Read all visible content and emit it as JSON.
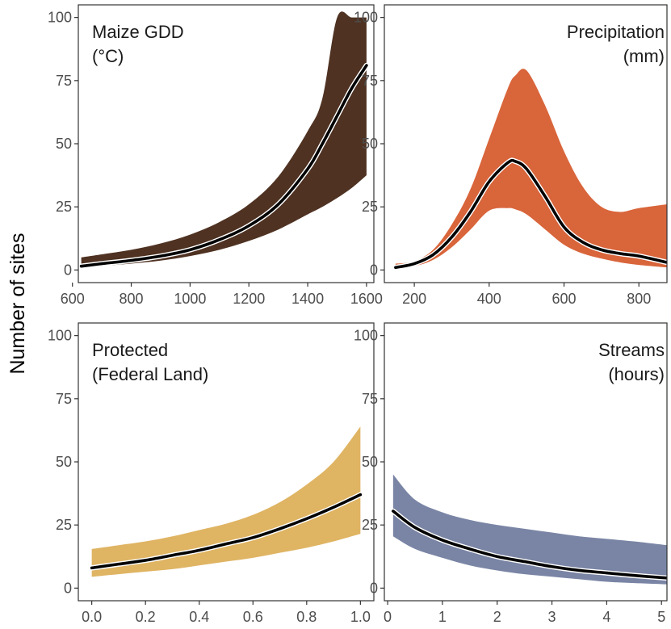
{
  "figure": {
    "ylabel": "Number of sites"
  },
  "chart_data": [
    {
      "type": "line",
      "title_lines": [
        "Maize GDD",
        "(°C)"
      ],
      "title_align": "top-left",
      "color": "#4f3222",
      "xlim": [
        620,
        1625
      ],
      "ylim": [
        -5,
        105
      ],
      "xticks": [
        600,
        800,
        1000,
        1200,
        1400,
        1600
      ],
      "yticks": [
        0,
        25,
        50,
        75,
        100
      ],
      "x": [
        630,
        700,
        800,
        900,
        1000,
        1100,
        1200,
        1300,
        1400,
        1450,
        1500,
        1550,
        1600
      ],
      "y": [
        1.5,
        2.5,
        3.8,
        5.5,
        8,
        12,
        17.5,
        26,
        40,
        50,
        61,
        72,
        81
      ],
      "lower": [
        1,
        1.6,
        2.5,
        3.7,
        5.5,
        8,
        11.5,
        16,
        22,
        25,
        28.5,
        32.5,
        37.5
      ],
      "upper": [
        5,
        6.2,
        8,
        10.5,
        14,
        19,
        26,
        37,
        55,
        68,
        100,
        100,
        100
      ]
    },
    {
      "type": "line",
      "title_lines": [
        "Precipitation",
        "(mm)"
      ],
      "title_align": "top-right",
      "color": "#d9653b",
      "xlim": [
        120,
        875
      ],
      "ylim": [
        -5,
        105
      ],
      "xticks": [
        200,
        400,
        600,
        800
      ],
      "yticks": [
        0,
        25,
        50,
        75,
        100
      ],
      "x": [
        150,
        200,
        250,
        300,
        350,
        400,
        450,
        470,
        500,
        550,
        600,
        650,
        700,
        750,
        800,
        875
      ],
      "y": [
        1,
        2.5,
        6,
        13,
        23,
        35,
        42.5,
        43,
        40,
        29,
        17,
        11,
        8,
        6.5,
        5.5,
        3
      ],
      "lower": [
        0.5,
        1.5,
        4,
        9,
        16,
        23.5,
        24.5,
        24,
        22,
        16,
        10,
        6.5,
        4.5,
        3,
        2,
        1
      ],
      "upper": [
        2.5,
        3.5,
        8,
        18,
        32,
        52,
        72,
        77,
        79,
        65,
        47,
        33,
        25,
        23,
        24.5,
        26
      ]
    },
    {
      "type": "line",
      "title_lines": [
        "Protected",
        "(Federal Land)"
      ],
      "title_align": "top-left",
      "color": "#dfb463",
      "xlim": [
        -0.05,
        1.05
      ],
      "ylim": [
        -5,
        105
      ],
      "xticks": [
        0.0,
        0.2,
        0.4,
        0.6,
        0.8,
        1.0
      ],
      "yticks": [
        0,
        25,
        50,
        75,
        100
      ],
      "x": [
        0.0,
        0.1,
        0.2,
        0.3,
        0.4,
        0.5,
        0.6,
        0.7,
        0.8,
        0.9,
        1.0
      ],
      "y": [
        8,
        9.5,
        11,
        13,
        15,
        17.5,
        20,
        23.5,
        27.5,
        32,
        37
      ],
      "lower": [
        4.5,
        5.5,
        6.5,
        7.5,
        9,
        10.5,
        12,
        14,
        16,
        18.5,
        21.5
      ],
      "upper": [
        15.5,
        17,
        18.5,
        20.5,
        23,
        25.5,
        29,
        34,
        41,
        50,
        64
      ]
    },
    {
      "type": "line",
      "title_lines": [
        "Streams",
        "(hours)"
      ],
      "title_align": "top-right",
      "color": "#7a85a5",
      "xlim": [
        -0.06,
        5.1
      ],
      "ylim": [
        -5,
        105
      ],
      "xticks": [
        0,
        1,
        2,
        3,
        4,
        5
      ],
      "yticks": [
        0,
        25,
        50,
        75,
        100
      ],
      "x": [
        0.1,
        0.5,
        1,
        1.5,
        2,
        2.5,
        3,
        3.5,
        4,
        4.5,
        5.1
      ],
      "y": [
        30.5,
        24,
        19,
        15.5,
        12.5,
        10.5,
        8.5,
        7,
        6,
        5,
        4
      ],
      "lower": [
        20.5,
        15.5,
        12,
        9,
        7,
        5.5,
        4.5,
        3.5,
        2.5,
        2,
        1.5
      ],
      "upper": [
        45,
        35,
        30,
        27,
        25,
        23.5,
        22,
        20.5,
        19.5,
        18.5,
        17
      ]
    }
  ]
}
